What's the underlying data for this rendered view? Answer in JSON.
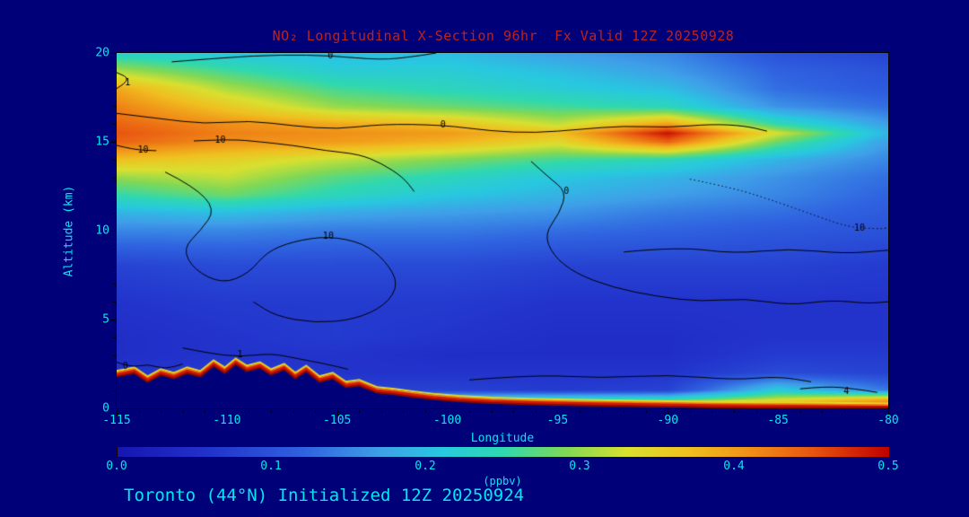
{
  "page": {
    "colors": {
      "background": "#000078",
      "title_text": "#bb2222",
      "cyan_text": "#00e8f0",
      "contour_line": "#000000",
      "terrain": "#000078"
    }
  },
  "title": {
    "text": "NO₂ Longitudinal X-Section 96hr  Fx Valid 12Z 20250928"
  },
  "footer": {
    "text": "Toronto (44°N) Initialized 12Z 20250924"
  },
  "axes": {
    "y_label": "Altitude (km)",
    "x_label": "Longitude",
    "y_ticks": [
      0,
      5,
      10,
      15,
      20
    ],
    "x_ticks": [
      -115,
      -110,
      -105,
      -100,
      -95,
      -90,
      -85,
      -80
    ],
    "x_range": [
      -115,
      -80
    ],
    "y_range": [
      0,
      20
    ]
  },
  "colorbar": {
    "label": "(ppbv)",
    "ticks": [
      "0.0",
      "0.1",
      "0.2",
      "0.3",
      "0.4",
      "0.5"
    ],
    "min": 0.0,
    "max": 0.5,
    "stops": [
      {
        "v": 0.0,
        "c": "#1616b0"
      },
      {
        "v": 0.06,
        "c": "#2233cc"
      },
      {
        "v": 0.12,
        "c": "#2f62e0"
      },
      {
        "v": 0.17,
        "c": "#3f9fe8"
      },
      {
        "v": 0.21,
        "c": "#28c8e0"
      },
      {
        "v": 0.25,
        "c": "#2fd8b0"
      },
      {
        "v": 0.29,
        "c": "#7fd857"
      },
      {
        "v": 0.33,
        "c": "#d8e030"
      },
      {
        "v": 0.37,
        "c": "#f0c020"
      },
      {
        "v": 0.41,
        "c": "#f09018"
      },
      {
        "v": 0.45,
        "c": "#e85510"
      },
      {
        "v": 0.5,
        "c": "#c00000"
      }
    ]
  },
  "chart_data": {
    "type": "heatmap",
    "title": "NO₂ Longitudinal X-Section 96hr  Fx Valid 12Z 20250928",
    "subtitle": "Toronto (44°N) Initialized 12Z 20250924",
    "xlabel": "Longitude",
    "ylabel": "Altitude (km)",
    "units": "ppbv",
    "xlim": [
      -115,
      -80
    ],
    "ylim": [
      0,
      20
    ],
    "zlim": [
      0.0,
      0.5
    ],
    "x": [
      -115,
      -110,
      -105,
      -100,
      -95,
      -90,
      -85,
      -80
    ],
    "y": [
      0,
      0.5,
      1,
      2,
      3,
      4,
      6,
      8,
      10,
      11,
      12,
      13,
      14,
      15,
      15.5,
      16,
      17,
      18,
      19,
      20
    ],
    "values": [
      [
        0.48,
        0.48,
        0.48,
        0.48,
        0.48,
        0.48,
        0.48,
        0.48
      ],
      [
        0.15,
        0.15,
        0.15,
        0.22,
        0.24,
        0.24,
        0.32,
        0.38
      ],
      [
        0.08,
        0.1,
        0.08,
        0.08,
        0.07,
        0.08,
        0.22,
        0.14
      ],
      [
        0.06,
        0.07,
        0.06,
        0.06,
        0.06,
        0.06,
        0.09,
        0.08
      ],
      [
        0.05,
        0.06,
        0.06,
        0.05,
        0.05,
        0.05,
        0.07,
        0.07
      ],
      [
        0.05,
        0.06,
        0.07,
        0.06,
        0.05,
        0.05,
        0.06,
        0.06
      ],
      [
        0.06,
        0.07,
        0.07,
        0.07,
        0.06,
        0.06,
        0.06,
        0.06
      ],
      [
        0.08,
        0.09,
        0.09,
        0.09,
        0.08,
        0.08,
        0.08,
        0.07
      ],
      [
        0.15,
        0.15,
        0.14,
        0.14,
        0.13,
        0.12,
        0.11,
        0.1
      ],
      [
        0.19,
        0.2,
        0.18,
        0.17,
        0.16,
        0.14,
        0.13,
        0.11
      ],
      [
        0.25,
        0.28,
        0.24,
        0.21,
        0.19,
        0.17,
        0.15,
        0.12
      ],
      [
        0.3,
        0.32,
        0.27,
        0.24,
        0.21,
        0.19,
        0.16,
        0.13
      ],
      [
        0.37,
        0.35,
        0.32,
        0.29,
        0.26,
        0.24,
        0.19,
        0.15
      ],
      [
        0.44,
        0.41,
        0.4,
        0.38,
        0.34,
        0.44,
        0.28,
        0.17
      ],
      [
        0.45,
        0.42,
        0.41,
        0.4,
        0.37,
        0.49,
        0.33,
        0.19
      ],
      [
        0.44,
        0.41,
        0.39,
        0.37,
        0.32,
        0.4,
        0.25,
        0.17
      ],
      [
        0.42,
        0.36,
        0.3,
        0.28,
        0.26,
        0.24,
        0.16,
        0.13
      ],
      [
        0.39,
        0.31,
        0.26,
        0.24,
        0.22,
        0.2,
        0.13,
        0.11
      ],
      [
        0.31,
        0.26,
        0.22,
        0.22,
        0.2,
        0.17,
        0.12,
        0.1
      ],
      [
        0.23,
        0.21,
        0.2,
        0.2,
        0.17,
        0.15,
        0.1,
        0.08
      ]
    ],
    "terrain_profile": [
      [
        -115,
        1.9
      ],
      [
        -114.2,
        2.1
      ],
      [
        -113.6,
        1.6
      ],
      [
        -113,
        2.0
      ],
      [
        -112.4,
        1.8
      ],
      [
        -111.8,
        2.1
      ],
      [
        -111.2,
        1.9
      ],
      [
        -110.6,
        2.5
      ],
      [
        -110.1,
        2.1
      ],
      [
        -109.6,
        2.6
      ],
      [
        -109.1,
        2.2
      ],
      [
        -108.5,
        2.4
      ],
      [
        -108,
        2.0
      ],
      [
        -107.4,
        2.3
      ],
      [
        -106.9,
        1.8
      ],
      [
        -106.4,
        2.2
      ],
      [
        -105.8,
        1.6
      ],
      [
        -105.2,
        1.8
      ],
      [
        -104.6,
        1.3
      ],
      [
        -104,
        1.4
      ],
      [
        -103.2,
        1.0
      ],
      [
        -102.4,
        0.9
      ],
      [
        -101.5,
        0.75
      ],
      [
        -100.5,
        0.6
      ],
      [
        -99.5,
        0.5
      ],
      [
        -98,
        0.4
      ],
      [
        -96,
        0.33
      ],
      [
        -94,
        0.28
      ],
      [
        -92,
        0.24
      ],
      [
        -90,
        0.2
      ],
      [
        -88,
        0.17
      ],
      [
        -86,
        0.14
      ],
      [
        -84,
        0.12
      ],
      [
        -82,
        0.1
      ],
      [
        -80,
        0.08
      ]
    ],
    "contours": [
      {
        "label": "0",
        "dotted": false,
        "label_at": [
          -105.3,
          19.85
        ],
        "pts": [
          [
            -112.5,
            19.5
          ],
          [
            -110,
            19.75
          ],
          [
            -107.5,
            19.9
          ],
          [
            -105.3,
            19.85
          ],
          [
            -103,
            19.6
          ],
          [
            -101.5,
            19.8
          ],
          [
            -100.5,
            20
          ]
        ]
      },
      {
        "label": "1",
        "dotted": false,
        "label_at": [
          -114.5,
          18.3
        ],
        "pts": [
          [
            -115,
            18.0
          ],
          [
            -114.3,
            18.5
          ],
          [
            -115,
            18.9
          ]
        ]
      },
      {
        "label": "0",
        "dotted": false,
        "label_at": [
          -100.2,
          15.95
        ],
        "pts": [
          [
            -115,
            16.6
          ],
          [
            -113,
            16.3
          ],
          [
            -111,
            16.0
          ],
          [
            -109,
            16.2
          ],
          [
            -107,
            15.9
          ],
          [
            -105,
            15.7
          ],
          [
            -103,
            16.0
          ],
          [
            -100.2,
            15.95
          ],
          [
            -98,
            15.6
          ],
          [
            -96,
            15.5
          ],
          [
            -94,
            15.7
          ],
          [
            -92,
            15.9
          ],
          [
            -90,
            15.8
          ],
          [
            -88,
            16.0
          ],
          [
            -86.5,
            15.9
          ],
          [
            -85.5,
            15.6
          ]
        ]
      },
      {
        "label": "10",
        "dotted": false,
        "label_at": [
          -113.8,
          14.55
        ],
        "pts": [
          [
            -115,
            14.8
          ],
          [
            -114.2,
            14.55
          ],
          [
            -113.2,
            14.5
          ]
        ]
      },
      {
        "label": "10",
        "dotted": false,
        "label_at": [
          -110.3,
          15.1
        ],
        "pts": [
          [
            -111.5,
            15.05
          ],
          [
            -109.8,
            15.15
          ],
          [
            -108.5,
            15.0
          ],
          [
            -107,
            14.8
          ],
          [
            -105.5,
            14.5
          ],
          [
            -104,
            14.3
          ],
          [
            -103,
            13.8
          ],
          [
            -102,
            13.0
          ],
          [
            -101.5,
            12.2
          ]
        ]
      },
      {
        "label": "10",
        "dotted": false,
        "label_at": [
          -105.4,
          9.7
        ],
        "pts": [
          [
            -112.8,
            13.3
          ],
          [
            -111.5,
            12.5
          ],
          [
            -110.5,
            11.2
          ],
          [
            -111.2,
            10.0
          ],
          [
            -112,
            9.0
          ],
          [
            -111.5,
            7.8
          ],
          [
            -110.2,
            7.0
          ],
          [
            -109.0,
            7.6
          ],
          [
            -108.2,
            8.8
          ],
          [
            -107.0,
            9.4
          ],
          [
            -105.4,
            9.7
          ],
          [
            -103.8,
            9.3
          ],
          [
            -102.8,
            8.3
          ],
          [
            -102.2,
            7.0
          ],
          [
            -102.8,
            5.8
          ],
          [
            -104.2,
            5.0
          ],
          [
            -106.0,
            4.8
          ],
          [
            -107.8,
            5.2
          ],
          [
            -108.8,
            6.0
          ]
        ]
      },
      {
        "label": "0",
        "dotted": false,
        "label_at": [
          -94.6,
          12.2
        ],
        "pts": [
          [
            -96.2,
            13.9
          ],
          [
            -95.4,
            13.0
          ],
          [
            -94.6,
            12.2
          ],
          [
            -94.9,
            11.0
          ],
          [
            -95.6,
            9.8
          ],
          [
            -95.2,
            8.6
          ],
          [
            -94.2,
            7.6
          ],
          [
            -92.5,
            6.8
          ],
          [
            -90.5,
            6.3
          ],
          [
            -88.5,
            6.0
          ],
          [
            -86.5,
            6.2
          ],
          [
            -84.5,
            5.8
          ],
          [
            -82.5,
            6.1
          ],
          [
            -81,
            5.9
          ],
          [
            -80,
            6.0
          ]
        ]
      },
      {
        "label": "",
        "dotted": false,
        "label_at": null,
        "pts": [
          [
            -92,
            8.8
          ],
          [
            -89.5,
            9.1
          ],
          [
            -87,
            8.7
          ],
          [
            -84.5,
            9.0
          ],
          [
            -82,
            8.7
          ],
          [
            -80,
            8.9
          ]
        ]
      },
      {
        "label": "0",
        "dotted": false,
        "label_at": [
          -114.6,
          2.35
        ],
        "pts": [
          [
            -115,
            2.6
          ],
          [
            -114.3,
            2.3
          ],
          [
            -113.6,
            2.5
          ],
          [
            -112.8,
            2.2
          ],
          [
            -112,
            2.5
          ]
        ]
      },
      {
        "label": "1",
        "dotted": false,
        "label_at": [
          -109.4,
          3.0
        ],
        "pts": [
          [
            -112,
            3.4
          ],
          [
            -110.8,
            3.1
          ],
          [
            -109.4,
            2.9
          ],
          [
            -108,
            3.1
          ],
          [
            -106.8,
            2.8
          ],
          [
            -105.5,
            2.5
          ],
          [
            -104.5,
            2.2
          ]
        ]
      },
      {
        "label": "",
        "dotted": false,
        "label_at": null,
        "pts": [
          [
            -99,
            1.6
          ],
          [
            -96,
            1.9
          ],
          [
            -93,
            1.7
          ],
          [
            -90,
            1.9
          ],
          [
            -87,
            1.6
          ],
          [
            -85,
            1.8
          ],
          [
            -83.5,
            1.5
          ]
        ]
      },
      {
        "label": "10",
        "dotted": true,
        "label_at": [
          -81.3,
          10.15
        ],
        "pts": [
          [
            -89,
            12.9
          ],
          [
            -87,
            12.4
          ],
          [
            -85,
            11.6
          ],
          [
            -83.2,
            10.8
          ],
          [
            -81.8,
            10.2
          ],
          [
            -80.5,
            10.1
          ],
          [
            -80,
            10.15
          ]
        ]
      },
      {
        "label": "4",
        "dotted": false,
        "label_at": [
          -81.9,
          0.95
        ],
        "pts": [
          [
            -84,
            1.1
          ],
          [
            -82.8,
            1.25
          ],
          [
            -81.5,
            1.1
          ],
          [
            -80.5,
            0.9
          ]
        ]
      }
    ]
  }
}
